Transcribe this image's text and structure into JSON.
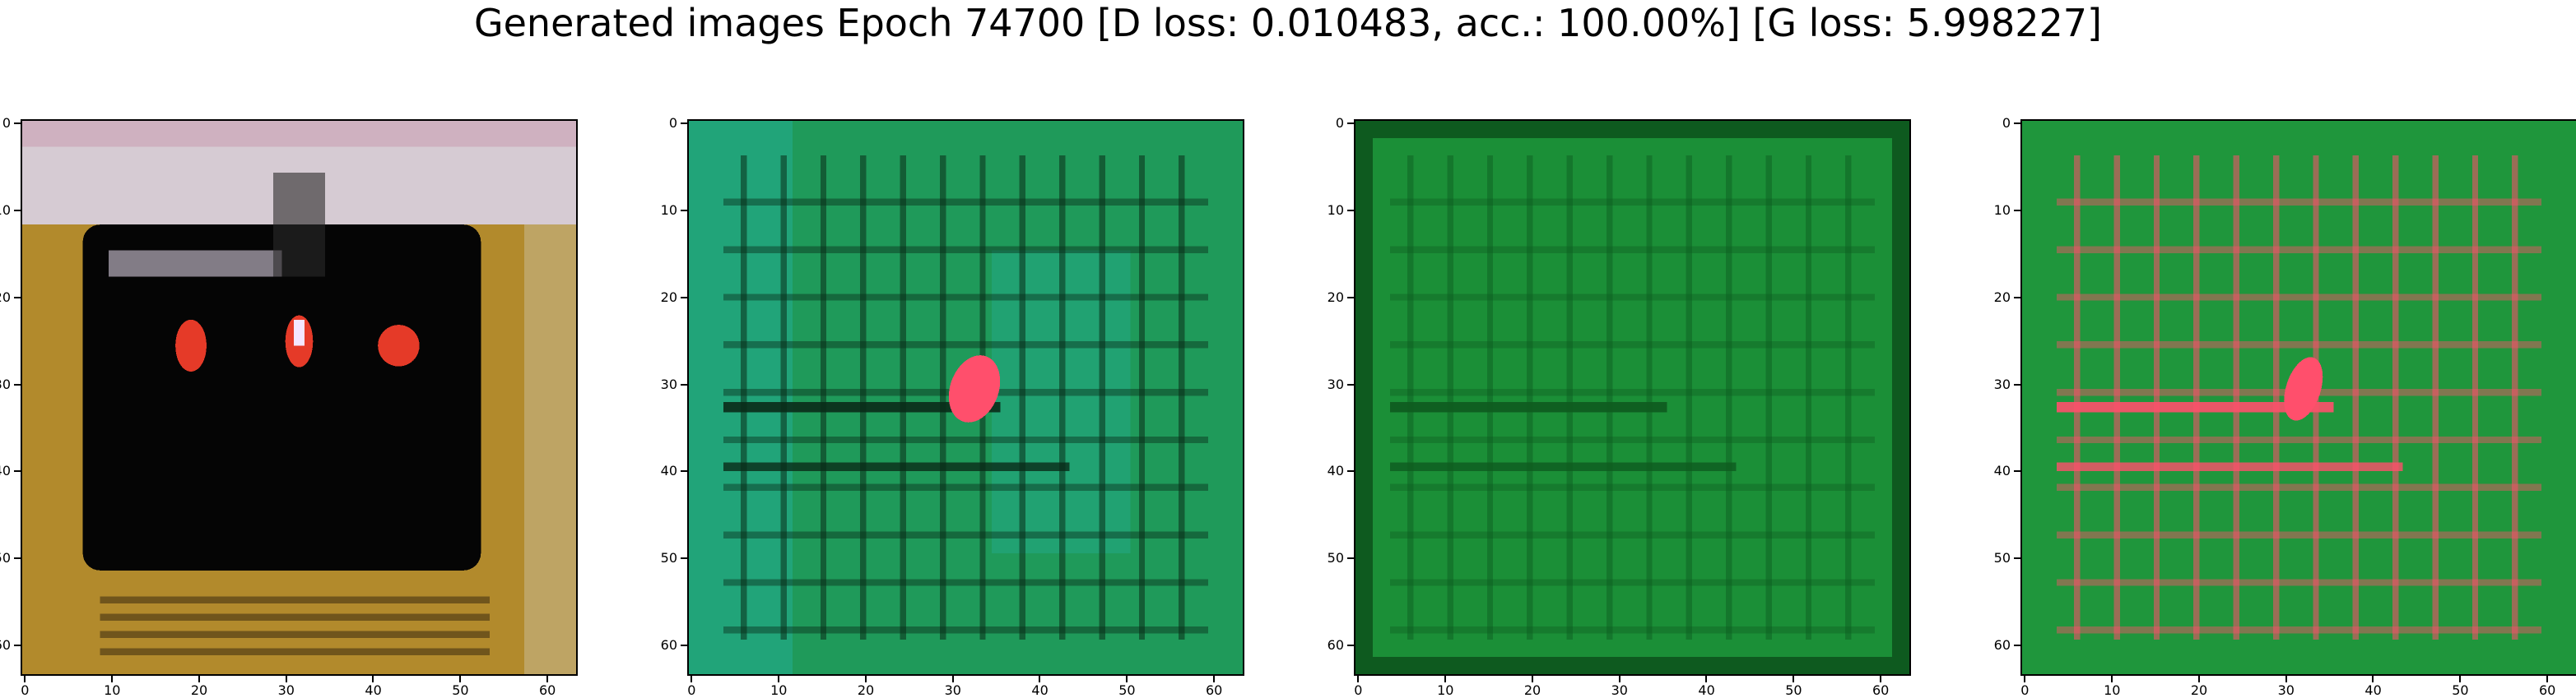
{
  "figure": {
    "title": "Generated images Epoch 74700 [D loss: 0.010483, acc.: 100.00%] [G loss: 5.998227]",
    "x_ticks": [
      "0",
      "10",
      "20",
      "30",
      "40",
      "50",
      "60"
    ],
    "y_ticks": [
      "0",
      "10",
      "20",
      "30",
      "40",
      "50",
      "60"
    ],
    "panels": [
      {
        "name": "generated-image-1",
        "dominant_colors": [
          "#b28a2c",
          "#050505",
          "#e53a28",
          "#d9d2e6"
        ]
      },
      {
        "name": "generated-image-2",
        "dominant_colors": [
          "#1f9a5a",
          "#24b2a0",
          "#0a2b18",
          "#ff4f6c"
        ]
      },
      {
        "name": "generated-image-3",
        "dominant_colors": [
          "#1b8f37",
          "#0e5a1f",
          "#2ab054"
        ]
      },
      {
        "name": "generated-image-4",
        "dominant_colors": [
          "#1f963c",
          "#0a3016",
          "#ff4f6c"
        ]
      }
    ]
  }
}
